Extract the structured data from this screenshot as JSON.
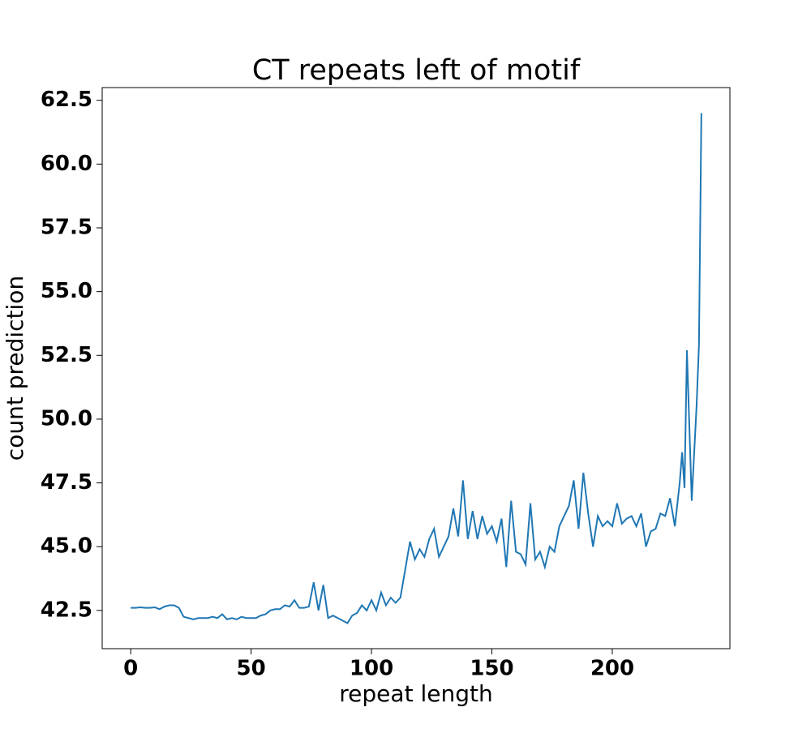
{
  "chart_data": {
    "type": "line",
    "title": "CT repeats left of motif",
    "xlabel": "repeat length",
    "ylabel": "count prediction",
    "x": [
      0,
      2,
      4,
      6,
      8,
      10,
      12,
      14,
      16,
      18,
      20,
      22,
      24,
      26,
      28,
      30,
      32,
      34,
      36,
      38,
      40,
      42,
      44,
      46,
      48,
      50,
      52,
      54,
      56,
      58,
      60,
      62,
      64,
      66,
      68,
      70,
      72,
      74,
      76,
      78,
      80,
      82,
      84,
      86,
      88,
      90,
      92,
      94,
      96,
      98,
      100,
      102,
      104,
      106,
      108,
      110,
      112,
      114,
      116,
      118,
      120,
      122,
      124,
      126,
      128,
      130,
      132,
      134,
      136,
      138,
      140,
      142,
      144,
      146,
      148,
      150,
      152,
      154,
      156,
      158,
      160,
      162,
      164,
      166,
      168,
      170,
      172,
      174,
      176,
      178,
      180,
      182,
      184,
      186,
      188,
      190,
      192,
      194,
      196,
      198,
      200,
      202,
      204,
      206,
      208,
      210,
      212,
      214,
      216,
      218,
      220,
      222,
      224,
      226,
      228,
      229,
      230,
      231,
      233,
      235,
      236,
      237
    ],
    "series": [
      {
        "name": "count prediction",
        "color": "#1f77b4",
        "values": [
          42.6,
          42.6,
          42.62,
          42.6,
          42.6,
          42.62,
          42.55,
          42.65,
          42.7,
          42.7,
          42.6,
          42.25,
          42.2,
          42.15,
          42.2,
          42.2,
          42.2,
          42.25,
          42.2,
          42.35,
          42.15,
          42.2,
          42.15,
          42.25,
          42.2,
          42.2,
          42.2,
          42.3,
          42.35,
          42.5,
          42.55,
          42.55,
          42.7,
          42.65,
          42.9,
          42.6,
          42.6,
          42.65,
          43.6,
          42.5,
          43.5,
          42.2,
          42.3,
          42.2,
          42.1,
          42.0,
          42.3,
          42.4,
          42.7,
          42.5,
          42.9,
          42.5,
          43.2,
          42.7,
          43.0,
          42.8,
          43.0,
          44.1,
          45.2,
          44.5,
          44.9,
          44.6,
          45.3,
          45.7,
          44.6,
          45.0,
          45.4,
          46.5,
          45.4,
          47.6,
          45.3,
          46.4,
          45.3,
          46.2,
          45.5,
          45.8,
          45.2,
          46.1,
          44.2,
          46.8,
          44.8,
          44.7,
          44.3,
          46.7,
          44.5,
          44.8,
          44.2,
          45.0,
          44.8,
          45.8,
          46.2,
          46.6,
          47.6,
          45.7,
          47.9,
          46.3,
          45.0,
          46.2,
          45.8,
          46.0,
          45.8,
          46.7,
          45.9,
          46.1,
          46.2,
          45.8,
          46.3,
          45.0,
          45.6,
          45.7,
          46.3,
          46.2,
          46.9,
          45.8,
          47.5,
          48.7,
          47.3,
          52.7,
          46.8,
          50.5,
          52.9,
          62.0
        ]
      }
    ],
    "xlim": [
      -11.85,
      248.85
    ],
    "xticks": [
      0,
      50,
      100,
      150,
      200
    ],
    "ylim": [
      41.0,
      63.0
    ],
    "yticks": [
      42.5,
      {
        "value": 45,
        "label": "45.0"
      },
      47.5,
      {
        "value": 50,
        "label": "50.0"
      },
      52.5,
      {
        "value": 55,
        "label": "55.0"
      },
      57.5,
      {
        "value": 60,
        "label": "60.0"
      },
      62.5
    ],
    "grid": false
  }
}
